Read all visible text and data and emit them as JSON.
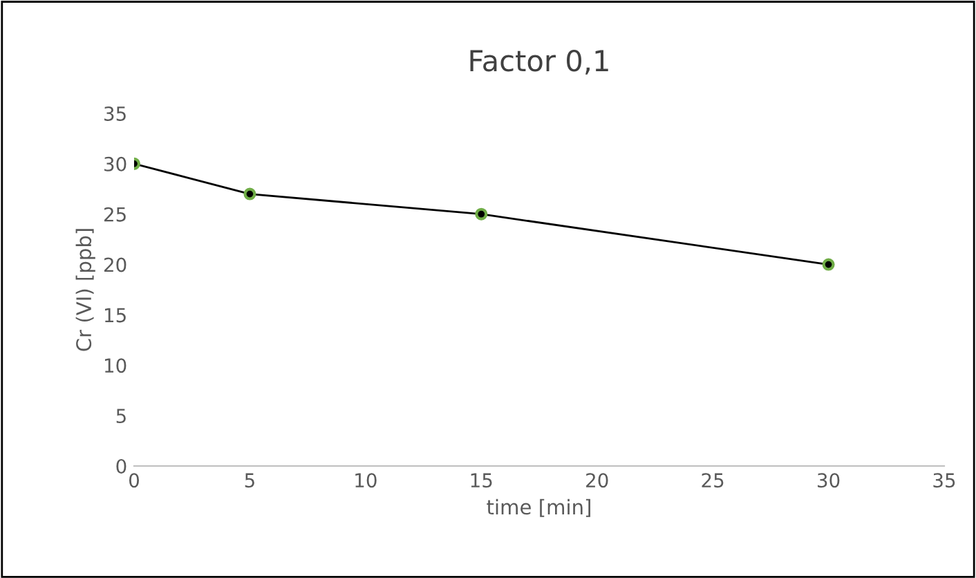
{
  "chart_data": {
    "type": "line",
    "title": "Factor 0,1",
    "xlabel": "time [min]",
    "ylabel": "Cr (VI) [ppb]",
    "series": [
      {
        "color": "#000000",
        "x": [
          0,
          5,
          15,
          30
        ],
        "values": [
          30,
          27,
          25,
          20
        ]
      }
    ],
    "xlim": [
      0,
      35
    ],
    "xticks": [
      0,
      5,
      10,
      15,
      20,
      25,
      30,
      35
    ],
    "ylim": [
      0,
      35
    ],
    "yticks": [
      0,
      5,
      10,
      15,
      20,
      25,
      30,
      35
    ],
    "marker": "circle",
    "grid": false
  }
}
